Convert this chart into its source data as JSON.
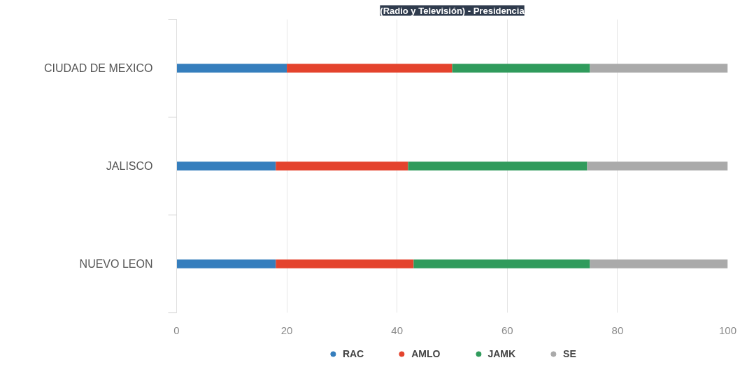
{
  "chart_data": {
    "type": "bar",
    "orientation": "horizontal",
    "stacked": true,
    "title": "(Radio y Televisión) - Presidencia",
    "categories": [
      "CIUDAD DE MEXICO",
      "JALISCO",
      "NUEVO LEON"
    ],
    "series": [
      {
        "name": "RAC",
        "color": "#357ebd",
        "values": [
          20,
          18,
          18
        ]
      },
      {
        "name": "AMLO",
        "color": "#e4432d",
        "values": [
          30,
          24,
          25
        ]
      },
      {
        "name": "JAMK",
        "color": "#309b5c",
        "values": [
          25,
          32.5,
          32
        ]
      },
      {
        "name": "SE",
        "color": "#aaaaaa",
        "values": [
          25,
          25.5,
          25
        ]
      }
    ],
    "xlim": [
      0,
      100
    ],
    "xticks": [
      0,
      20,
      40,
      60,
      80,
      100
    ],
    "grid": "x",
    "legend": "bottom"
  }
}
